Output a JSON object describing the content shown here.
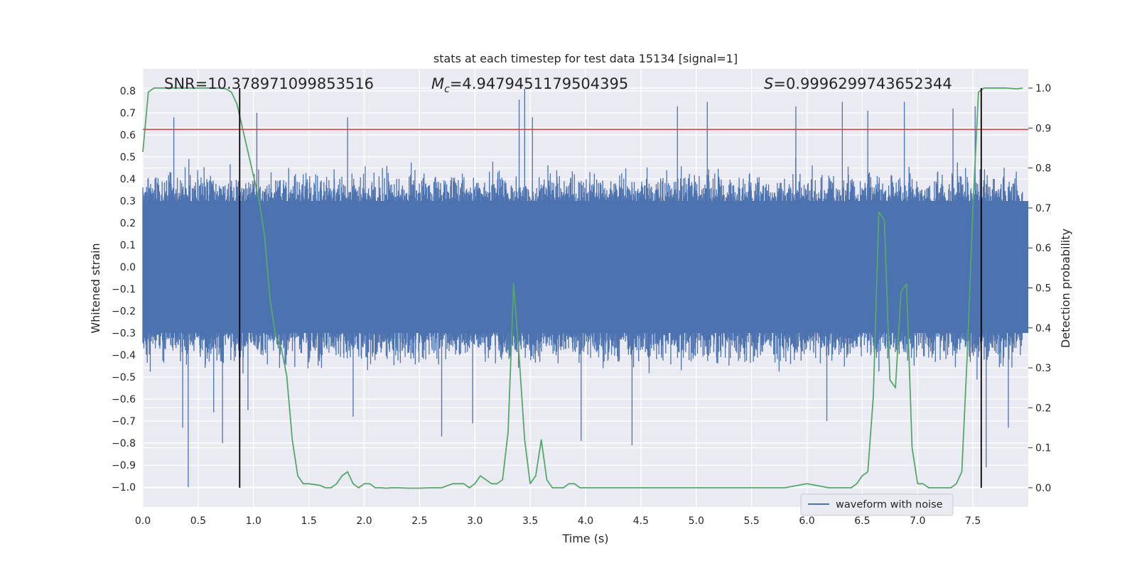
{
  "chart_data": {
    "type": "line",
    "title": "stats at each timestep for test data 15134 [signal=1]",
    "xlabel": "Time (s)",
    "ylabel_left": "Whitened strain",
    "ylabel_right": "Detection probability",
    "xlim": [
      0,
      8
    ],
    "ylim_left": [
      -1.09,
      0.9
    ],
    "ylim_right": [
      -0.048,
      1.048
    ],
    "xticks": [
      "0.0",
      "0.5",
      "1.0",
      "1.5",
      "2.0",
      "2.5",
      "3.0",
      "3.5",
      "4.0",
      "4.5",
      "5.0",
      "5.5",
      "6.0",
      "6.5",
      "7.0",
      "7.5"
    ],
    "yticks_left": [
      "0.8",
      "0.7",
      "0.6",
      "0.5",
      "0.4",
      "0.3",
      "0.2",
      "0.1",
      "0.0",
      "−0.1",
      "−0.2",
      "−0.3",
      "−0.4",
      "−0.5",
      "−0.6",
      "−0.7",
      "−0.8",
      "−0.9",
      "−1.0"
    ],
    "yticks_right": [
      "1.0",
      "0.9",
      "0.8",
      "0.7",
      "0.6",
      "0.5",
      "0.4",
      "0.3",
      "0.2",
      "0.1",
      "0.0"
    ],
    "grid": true,
    "legend_position": "bottom-right",
    "annotations": {
      "snr": "SNR=10.378971099853516",
      "mc_symbol": "M",
      "mc_subscript": "c",
      "mc_value": "=4.9479451179504395",
      "s_symbol": "S",
      "s_value": "=0.9996299743652344"
    },
    "threshold_line": {
      "y": 0.625,
      "color": "#c44e52"
    },
    "vertical_lines": [
      0.875,
      7.575
    ],
    "waveform": {
      "name": "waveform with noise",
      "color": "#4c72b0",
      "dense_range": [
        -0.3,
        0.3
      ],
      "peaks": [
        {
          "x": 0.28,
          "y": 0.68
        },
        {
          "x": 0.41,
          "y": -1.0
        },
        {
          "x": 0.36,
          "y": -0.73
        },
        {
          "x": 0.72,
          "y": -0.8
        },
        {
          "x": 0.64,
          "y": -0.66
        },
        {
          "x": 1.03,
          "y": 0.7
        },
        {
          "x": 0.95,
          "y": -0.65
        },
        {
          "x": 1.85,
          "y": 0.68
        },
        {
          "x": 1.9,
          "y": -0.68
        },
        {
          "x": 2.7,
          "y": -0.77
        },
        {
          "x": 2.98,
          "y": -0.71
        },
        {
          "x": 3.4,
          "y": 0.76
        },
        {
          "x": 3.45,
          "y": 0.81
        },
        {
          "x": 3.52,
          "y": 0.68
        },
        {
          "x": 3.96,
          "y": -0.79
        },
        {
          "x": 4.42,
          "y": -0.81
        },
        {
          "x": 4.83,
          "y": 0.73
        },
        {
          "x": 5.1,
          "y": 0.75
        },
        {
          "x": 5.9,
          "y": 0.73
        },
        {
          "x": 6.32,
          "y": 0.75
        },
        {
          "x": 6.55,
          "y": 0.71
        },
        {
          "x": 6.18,
          "y": -0.7
        },
        {
          "x": 6.88,
          "y": 0.75
        },
        {
          "x": 7.32,
          "y": 0.72
        },
        {
          "x": 7.52,
          "y": 0.73
        },
        {
          "x": 7.62,
          "y": -0.91
        },
        {
          "x": 7.82,
          "y": -0.73
        }
      ]
    },
    "probability": {
      "color": "#55a868",
      "x": [
        0.0,
        0.05,
        0.1,
        0.15,
        0.2,
        0.3,
        0.4,
        0.5,
        0.6,
        0.7,
        0.75,
        0.8,
        0.85,
        0.9,
        0.95,
        1.0,
        1.05,
        1.1,
        1.15,
        1.2,
        1.25,
        1.3,
        1.35,
        1.4,
        1.45,
        1.5,
        1.6,
        1.65,
        1.7,
        1.75,
        1.8,
        1.85,
        1.9,
        1.95,
        2.0,
        2.05,
        2.1,
        2.15,
        2.2,
        2.25,
        2.3,
        2.4,
        2.5,
        2.6,
        2.7,
        2.8,
        2.85,
        2.9,
        2.95,
        3.0,
        3.05,
        3.1,
        3.15,
        3.2,
        3.25,
        3.3,
        3.35,
        3.4,
        3.45,
        3.5,
        3.55,
        3.6,
        3.65,
        3.7,
        3.75,
        3.8,
        3.85,
        3.9,
        3.95,
        4.0,
        4.05,
        4.1,
        4.2,
        4.3,
        4.4,
        4.5,
        4.8,
        5.0,
        5.3,
        5.4,
        5.5,
        5.6,
        5.8,
        6.0,
        6.2,
        6.25,
        6.3,
        6.35,
        6.4,
        6.45,
        6.5,
        6.55,
        6.6,
        6.65,
        6.7,
        6.75,
        6.8,
        6.85,
        6.9,
        6.95,
        7.0,
        7.05,
        7.1,
        7.2,
        7.3,
        7.35,
        7.4,
        7.45,
        7.5,
        7.55,
        7.6,
        7.65,
        7.7,
        7.8,
        7.9,
        7.95
      ],
      "y": [
        0.84,
        0.99,
        1.0,
        1.0,
        1.0,
        1.0,
        1.0,
        1.0,
        1.0,
        1.0,
        0.998,
        0.99,
        0.96,
        0.9,
        0.84,
        0.78,
        0.72,
        0.63,
        0.47,
        0.38,
        0.35,
        0.28,
        0.12,
        0.03,
        0.01,
        0.01,
        0.006,
        0.0,
        0.0,
        0.01,
        0.03,
        0.04,
        0.01,
        0.0,
        0.01,
        0.01,
        0.0,
        0.0,
        -0.001,
        0.0,
        0.0,
        -0.001,
        -0.001,
        0.0,
        0.0,
        0.01,
        0.01,
        0.01,
        0.0,
        0.01,
        0.03,
        0.02,
        0.01,
        0.01,
        0.02,
        0.14,
        0.51,
        0.33,
        0.12,
        0.01,
        0.03,
        0.12,
        0.02,
        0.0,
        0.0,
        0.0,
        0.01,
        0.01,
        0.0,
        0.0,
        0.0,
        0.0,
        0.0,
        0.0,
        0.0,
        0.0,
        0.0,
        0.0,
        0.0,
        0.0,
        0.0,
        0.0,
        0.0,
        0.01,
        0.0,
        0.0,
        0.0,
        0.0,
        0.0,
        0.01,
        0.03,
        0.04,
        0.23,
        0.69,
        0.67,
        0.27,
        0.25,
        0.49,
        0.51,
        0.1,
        0.01,
        0.01,
        0.0,
        0.0,
        0.0,
        0.01,
        0.04,
        0.34,
        0.7,
        0.99,
        1.0,
        1.0,
        1.0,
        1.0,
        0.998,
        1.0
      ],
      "start": [
        0.0,
        0.84
      ]
    }
  }
}
